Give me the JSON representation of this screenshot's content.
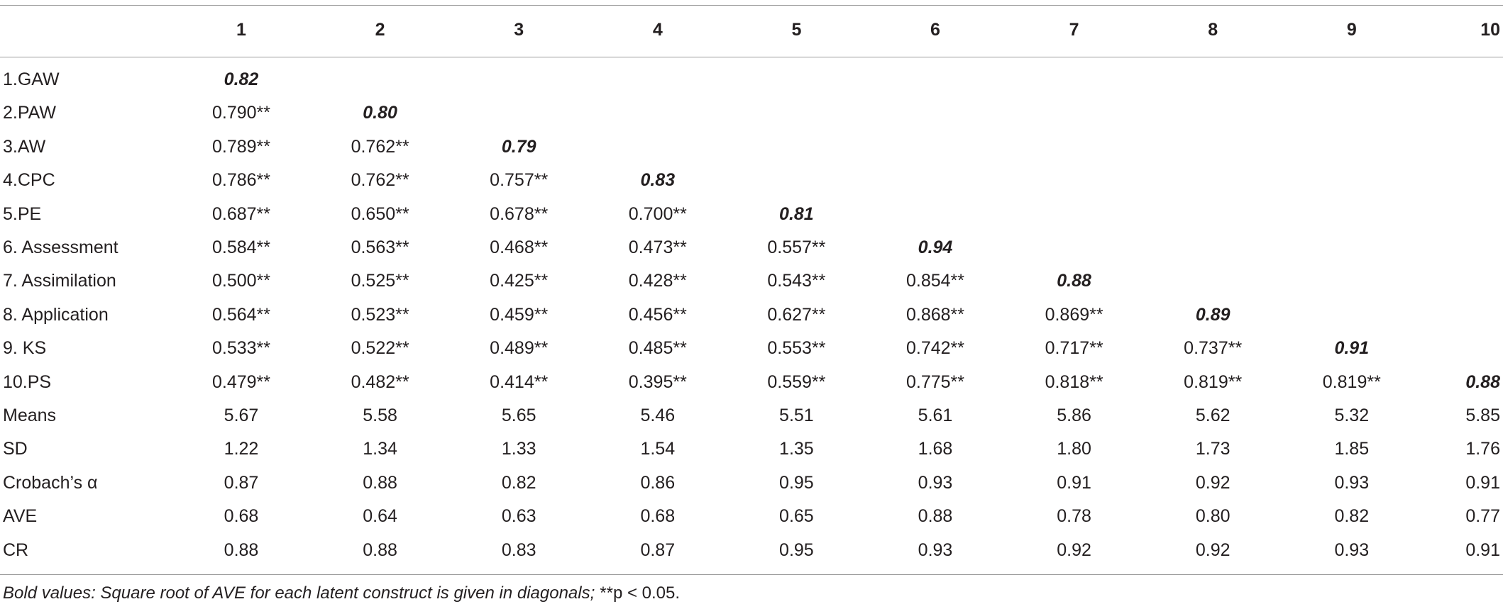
{
  "table": {
    "header": [
      "1",
      "2",
      "3",
      "4",
      "5",
      "6",
      "7",
      "8",
      "9",
      "10"
    ],
    "correlations": [
      {
        "label": "1.GAW",
        "values": [
          "0.82"
        ]
      },
      {
        "label": "2.PAW",
        "values": [
          "0.790**",
          "0.80"
        ]
      },
      {
        "label": "3.AW",
        "values": [
          "0.789**",
          "0.762**",
          "0.79"
        ]
      },
      {
        "label": "4.CPC",
        "values": [
          "0.786**",
          "0.762**",
          "0.757**",
          "0.83"
        ]
      },
      {
        "label": "5.PE",
        "values": [
          "0.687**",
          "0.650**",
          "0.678**",
          "0.700**",
          "0.81"
        ]
      },
      {
        "label": "6. Assessment",
        "values": [
          "0.584**",
          "0.563**",
          "0.468**",
          "0.473**",
          "0.557**",
          "0.94"
        ]
      },
      {
        "label": "7. Assimilation",
        "values": [
          "0.500**",
          "0.525**",
          "0.425**",
          "0.428**",
          "0.543**",
          "0.854**",
          "0.88"
        ]
      },
      {
        "label": "8. Application",
        "values": [
          "0.564**",
          "0.523**",
          "0.459**",
          "0.456**",
          "0.627**",
          "0.868**",
          "0.869**",
          "0.89"
        ]
      },
      {
        "label": "9. KS",
        "values": [
          "0.533**",
          "0.522**",
          "0.489**",
          "0.485**",
          "0.553**",
          "0.742**",
          "0.717**",
          "0.737**",
          "0.91"
        ]
      },
      {
        "label": "10.PS",
        "values": [
          "0.479**",
          "0.482**",
          "0.414**",
          "0.395**",
          "0.559**",
          "0.775**",
          "0.818**",
          "0.819**",
          "0.819**",
          "0.88"
        ]
      }
    ],
    "statistics": [
      {
        "label": "Means",
        "values": [
          "5.67",
          "5.58",
          "5.65",
          "5.46",
          "5.51",
          "5.61",
          "5.86",
          "5.62",
          "5.32",
          "5.85"
        ]
      },
      {
        "label": "SD",
        "values": [
          "1.22",
          "1.34",
          "1.33",
          "1.54",
          "1.35",
          "1.68",
          "1.80",
          "1.73",
          "1.85",
          "1.76"
        ]
      },
      {
        "label": "Crobach’s α",
        "values": [
          "0.87",
          "0.88",
          "0.82",
          "0.86",
          "0.95",
          "0.93",
          "0.91",
          "0.92",
          "0.93",
          "0.91"
        ]
      },
      {
        "label": "AVE",
        "values": [
          "0.68",
          "0.64",
          "0.63",
          "0.68",
          "0.65",
          "0.88",
          "0.78",
          "0.80",
          "0.82",
          "0.77"
        ]
      },
      {
        "label": "CR",
        "values": [
          "0.88",
          "0.88",
          "0.83",
          "0.87",
          "0.95",
          "0.93",
          "0.92",
          "0.92",
          "0.93",
          "0.91"
        ]
      }
    ],
    "note_italic": "Bold values: Square root of AVE for each latent construct is given in diagonals;",
    "note_plain": "**p < 0.05."
  }
}
